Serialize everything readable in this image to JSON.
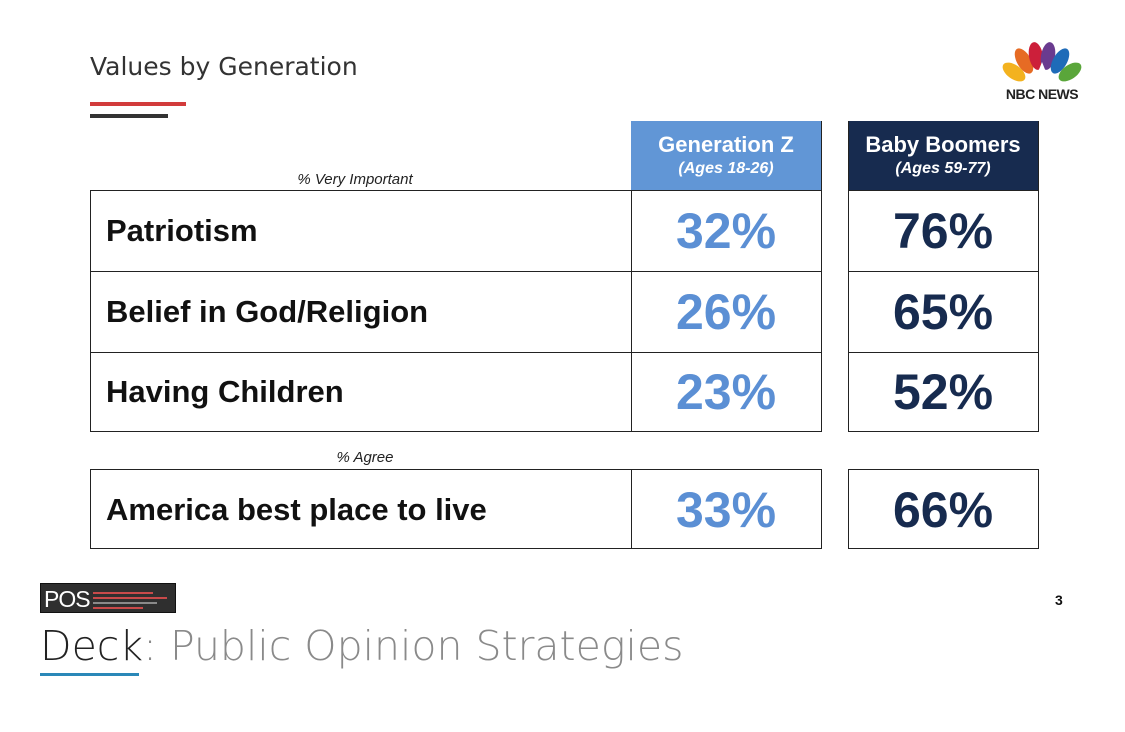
{
  "slide": {
    "title": "Values by Generation",
    "page_number": "3",
    "logo_text": "NBC NEWS"
  },
  "columns": [
    {
      "name": "Generation Z",
      "subtitle": "(Ages 18-26)",
      "color": "#6196d6"
    },
    {
      "name": "Baby Boomers",
      "subtitle": "(Ages 59-77)",
      "color": "#172b4f"
    }
  ],
  "sections": [
    {
      "label": "% Very Important"
    },
    {
      "label": "% Agree"
    }
  ],
  "chart_data": {
    "type": "table",
    "title": "Values by Generation",
    "columns": [
      "Generation Z (Ages 18-26)",
      "Baby Boomers (Ages 59-77)"
    ],
    "rows": [
      {
        "label": "Patriotism",
        "section": "% Very Important",
        "values": [
          "32%",
          "76%"
        ]
      },
      {
        "label": "Belief in God/Religion",
        "section": "% Very Important",
        "values": [
          "26%",
          "65%"
        ]
      },
      {
        "label": "Having Children",
        "section": "% Very Important",
        "values": [
          "23%",
          "52%"
        ]
      },
      {
        "label": "America best place to live",
        "section": "% Agree",
        "values": [
          "33%",
          "66%"
        ]
      }
    ]
  },
  "footer": {
    "pos_logo_text": "POS",
    "deck_word": "Deck",
    "deck_rest": ": Public Opinion Strategies"
  }
}
